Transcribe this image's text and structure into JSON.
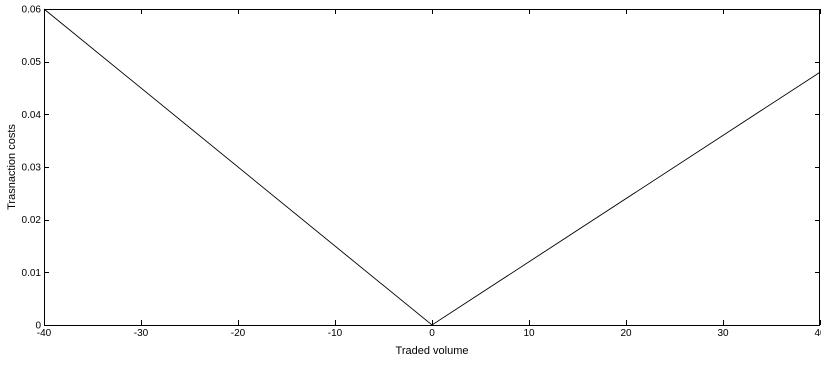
{
  "chart_data": {
    "type": "line",
    "title": "",
    "xlabel": "Traded volume",
    "ylabel": "Trasnaction costs",
    "xlim": [
      -40,
      40
    ],
    "ylim": [
      0,
      0.06
    ],
    "x_ticks": [
      -40,
      -30,
      -20,
      -10,
      0,
      10,
      20,
      30,
      40
    ],
    "x_tick_labels": [
      "-40",
      "-30",
      "-20",
      "-10",
      "0",
      "10",
      "20",
      "30",
      "40"
    ],
    "y_ticks": [
      0,
      0.01,
      0.02,
      0.03,
      0.04,
      0.05,
      0.06
    ],
    "y_tick_labels": [
      "0",
      "0.01",
      "0.02",
      "0.03",
      "0.04",
      "0.05",
      "0.06"
    ],
    "grid": false,
    "series": [
      {
        "x": [
          -40,
          0,
          40
        ],
        "y": [
          0.06,
          0,
          0.048
        ],
        "color": "#000000"
      }
    ]
  }
}
